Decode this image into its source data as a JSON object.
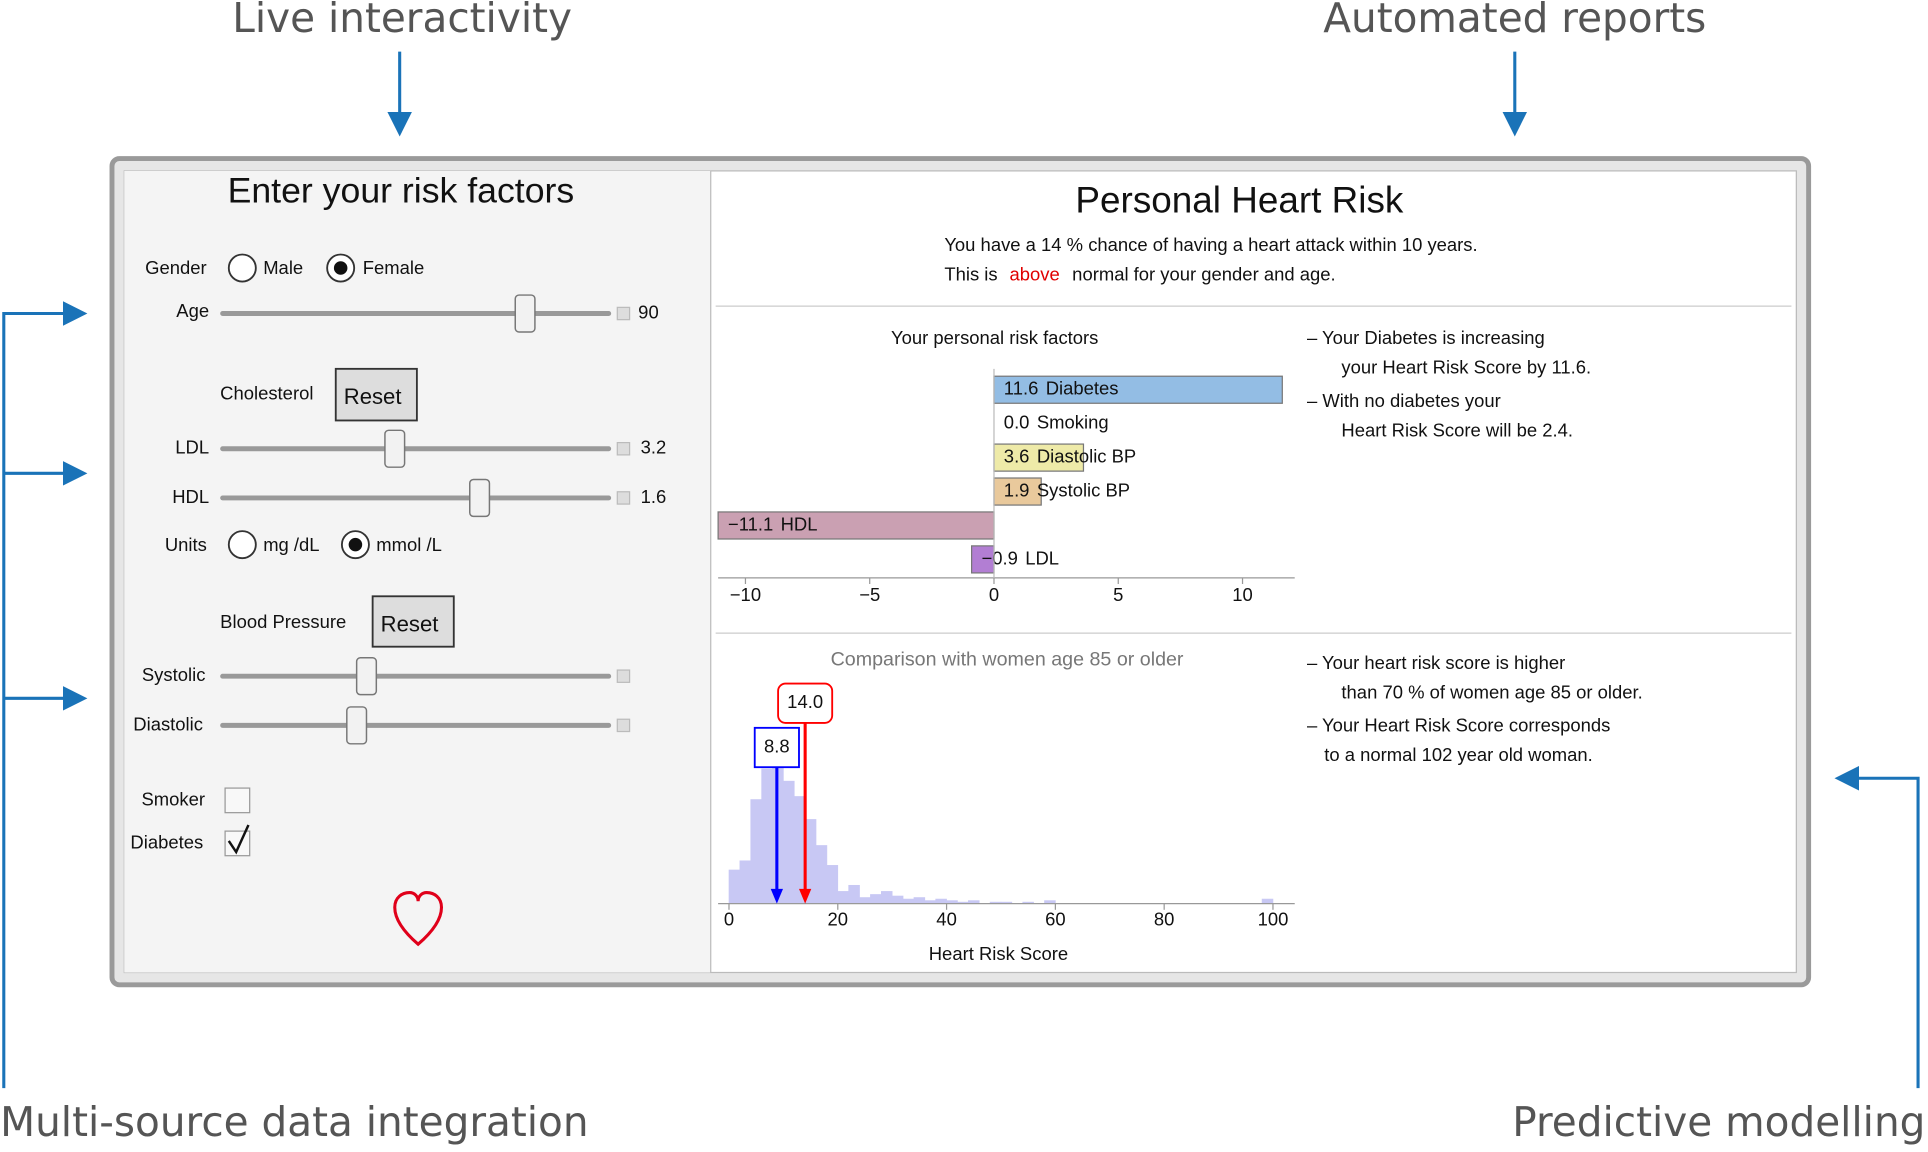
{
  "callouts": {
    "top_left": "Live interactivity",
    "top_right": "Automated reports",
    "bottom_left": "Multi-source data integration",
    "bottom_right": "Predictive modelling"
  },
  "input_panel": {
    "title": "Enter your risk factors",
    "gender": {
      "label": "Gender",
      "options": [
        "Male",
        "Female"
      ]
    },
    "age": {
      "label": "Age",
      "value": 90
    },
    "cholesterol": {
      "label": "Cholesterol",
      "button": "Reset"
    },
    "ldl": {
      "label": "LDL",
      "value": 3.2
    },
    "hdl": {
      "label": "HDL",
      "value": 1.6
    },
    "units": {
      "label": "Units",
      "options": [
        "mg /dL",
        "mmol /L"
      ]
    },
    "blood_pressure": {
      "label": "Blood Pressure",
      "button": "Reset"
    },
    "systolic": {
      "label": "Systolic"
    },
    "diastolic": {
      "label": "Diastolic"
    },
    "smoker": {
      "label": "Smoker"
    },
    "diabetes": {
      "label": "Diabetes"
    }
  },
  "report": {
    "title": "Personal Heart Risk",
    "line1": "You have a 14  % chance of having a heart attack within 10 years.",
    "line2": [
      "This is",
      "above",
      "normal for your gender and age."
    ],
    "notes1": [
      [
        "– Your Diabetes is increasing",
        "your Heart Risk Score by 11.6."
      ],
      [
        "– With no diabetes  your",
        "Heart Risk Score will be 2.4."
      ]
    ],
    "notes2": [
      [
        "– Your  heart risk score  is  higher",
        "than  70 %  of  women age  85  or  older."
      ],
      [
        "– Your  Heart Risk Score corresponds",
        "to  a  normal  102  year  old  woman."
      ]
    ]
  },
  "chart_data": [
    {
      "type": "hbar",
      "title": "Your personal risk factors",
      "categories": [
        "Diabetes",
        "Smoking",
        "Diastolic BP",
        "Systolic BP",
        "HDL",
        "LDL"
      ],
      "values": [
        11.6,
        0.0,
        3.6,
        1.9,
        -11.1,
        -0.9
      ],
      "value_labels": [
        "11.6",
        "0.0",
        "3.6",
        "1.9",
        "−11.1",
        "−0.9"
      ],
      "colors": [
        "#93bde4",
        "#ffffff",
        "#eeeaa8",
        "#e9c99c",
        "#caa0b2",
        "#b27ed3"
      ],
      "xlim": [
        -11.1,
        12.1
      ],
      "xticks": [
        {
          "value": -10,
          "label": "−10"
        },
        {
          "value": -5,
          "label": "−5"
        },
        0,
        5,
        10
      ]
    },
    {
      "type": "histogram",
      "title": "Comparison with women age 85 or older",
      "xlabel": "Heart Risk Score",
      "bins": [
        0,
        2,
        4,
        6,
        8,
        10,
        12,
        14,
        16,
        18,
        20,
        22,
        24,
        26,
        28,
        30,
        32,
        34,
        36,
        38,
        40,
        42,
        44,
        46,
        48,
        50,
        52,
        54,
        56,
        58,
        60,
        62,
        64,
        66,
        68,
        70,
        72,
        74,
        76,
        78,
        80,
        82,
        84,
        86,
        88,
        90,
        92,
        94,
        96,
        98,
        100
      ],
      "counts": [
        22,
        28,
        68,
        88,
        100,
        80,
        70,
        55,
        38,
        25,
        8,
        12,
        4,
        6,
        8,
        5,
        3,
        4,
        2,
        3,
        2,
        1,
        2,
        0,
        1,
        1,
        0,
        1,
        0,
        2,
        0,
        0,
        0,
        0,
        0,
        0,
        0,
        0,
        0,
        0,
        0,
        0,
        0,
        0,
        0,
        0,
        0,
        0,
        0,
        3
      ],
      "color": "#c8c8f4",
      "xlim": [
        -2,
        104
      ],
      "ylim": [
        0,
        110
      ],
      "xticks": [
        0,
        20,
        40,
        60,
        80,
        100
      ],
      "markers": [
        {
          "value": 8.8,
          "color": "#0000ff"
        },
        {
          "value": 14,
          "label": "14.0",
          "color": "#ff0000"
        }
      ]
    }
  ]
}
